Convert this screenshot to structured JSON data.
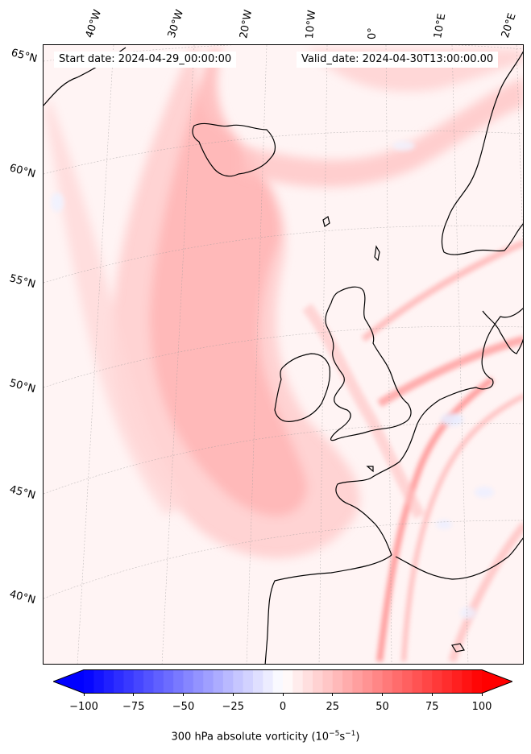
{
  "map": {
    "start_date": "Start date: 2024-04-29_00:00:00",
    "valid_date": "Valid_date: 2024-04-30T13:00:00.00",
    "longitude_labels": [
      "40°W",
      "30°W",
      "20°W",
      "10°W",
      "0°",
      "10°E",
      "20°E"
    ],
    "latitude_labels": [
      "65°N",
      "60°N",
      "55°N",
      "50°N",
      "45°N",
      "40°N"
    ],
    "field_colors": {
      "negative": "#0000ff",
      "neutral": "#ffffff",
      "positive": "#ff0000"
    }
  },
  "colorbar": {
    "min": -100,
    "max": 100,
    "ticks": [
      "−100",
      "−75",
      "−50",
      "−25",
      "0",
      "25",
      "50",
      "75",
      "100"
    ],
    "label": "300 hPa absolute vorticity (10",
    "label_exp1": "−5",
    "label_mid": "s",
    "label_exp2": "−1",
    "label_end": ")"
  }
}
